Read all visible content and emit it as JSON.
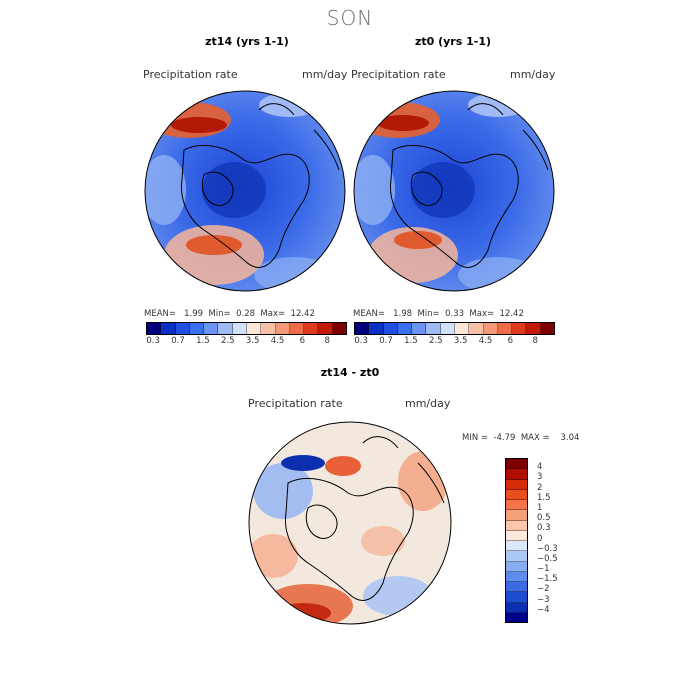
{
  "main_title": "SON",
  "panels": [
    {
      "title": "zt14 (yrs 1-1)",
      "variable": "Precipitation rate",
      "units": "mm/day",
      "stats": {
        "mean_label": "MEAN=",
        "mean": "1.99",
        "min_label": "Min=",
        "min": "0.28",
        "max_label": "Max=",
        "max": "12.42"
      }
    },
    {
      "title": "zt0 (yrs 1-1)",
      "variable": "Precipitation rate",
      "units": "mm/day",
      "stats": {
        "mean_label": "MEAN=",
        "mean": "1.98",
        "min_label": "Min=",
        "min": "0.33",
        "max_label": "Max=",
        "max": "12.42"
      }
    }
  ],
  "abs_colorbar": {
    "colors": [
      "#000080",
      "#0a2fc2",
      "#1f4fe0",
      "#3a6ff0",
      "#6a93f2",
      "#9fbaf5",
      "#d2e0fa",
      "#fde6d8",
      "#f8c1a6",
      "#f39a76",
      "#ec6c48",
      "#de3b1e",
      "#c01a08",
      "#7d0000"
    ],
    "ticks": [
      "0.3",
      "0.7",
      "1.5",
      "2.5",
      "3.5",
      "4.5",
      "6",
      "8"
    ]
  },
  "diff_panel": {
    "title": "zt14 - zt0",
    "variable": "Precipitation rate",
    "units": "mm/day",
    "min_label": "MIN =",
    "min": "-4.79",
    "max_label": "MAX =",
    "max": "3.04"
  },
  "diff_colorbar": {
    "colors": [
      "#7d0000",
      "#b00e00",
      "#d42c06",
      "#ea4e1c",
      "#f27448",
      "#f6a07a",
      "#fac7ab",
      "#fde9dc",
      "#dbe7fb",
      "#adc7f6",
      "#8aaef2",
      "#5d8cee",
      "#3b6be4",
      "#1f4dd0",
      "#0c2fb0",
      "#00008a"
    ],
    "ticks": [
      "4",
      "3",
      "2",
      "1.5",
      "1",
      "0.5",
      "0.3",
      "0",
      "-0.3",
      "-0.5",
      "-1",
      "-1.5",
      "-2",
      "-3",
      "-4"
    ]
  }
}
